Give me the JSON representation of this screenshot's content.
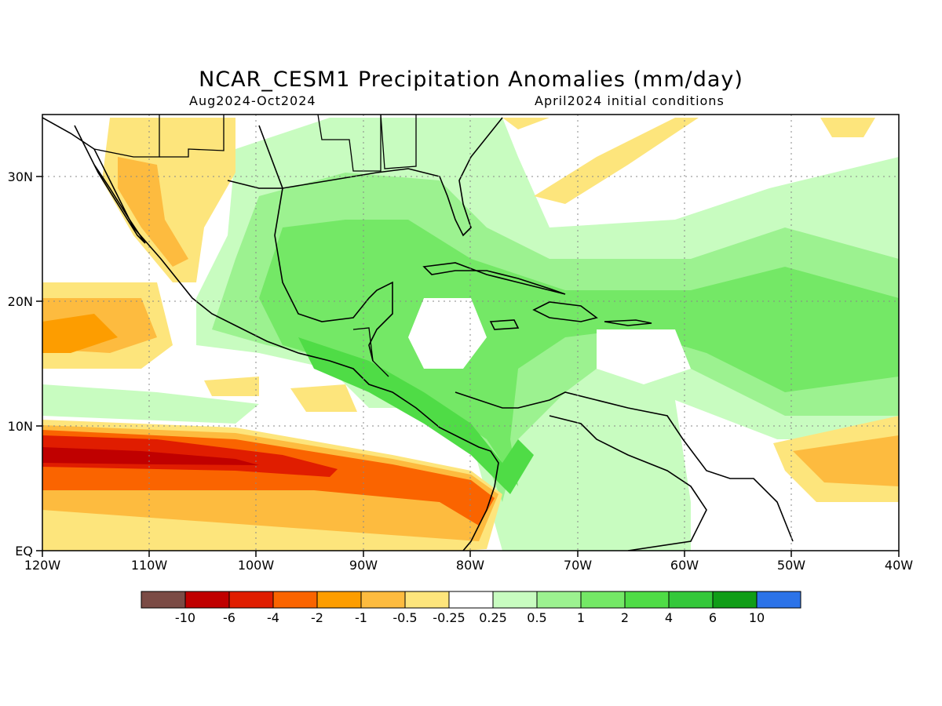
{
  "title": "NCAR_CESM1 Precipitation Anomalies (mm/day)",
  "subtitle_left": "Aug2024-Oct2024",
  "subtitle_right": "April2024 initial conditions",
  "lon_labels": [
    "120W",
    "110W",
    "100W",
    "90W",
    "80W",
    "70W",
    "60W",
    "50W",
    "40W"
  ],
  "lat_labels": [
    "EQ",
    "10N",
    "20N",
    "30N"
  ],
  "colorbar": {
    "colors": [
      "#7b4b45",
      "#c00000",
      "#e01d00",
      "#fa6400",
      "#fd9d00",
      "#fdbb3f",
      "#fde57c",
      "#ffffff",
      "#c8fcc0",
      "#9cf290",
      "#74e866",
      "#4fdc46",
      "#34c83a",
      "#109d17",
      "#2c73e8"
    ],
    "labels": [
      "-10",
      "-6",
      "-4",
      "-2",
      "-1",
      "-0.5",
      "-0.25",
      "0.25",
      "0.5",
      "1",
      "2",
      "4",
      "6",
      "10"
    ]
  }
}
